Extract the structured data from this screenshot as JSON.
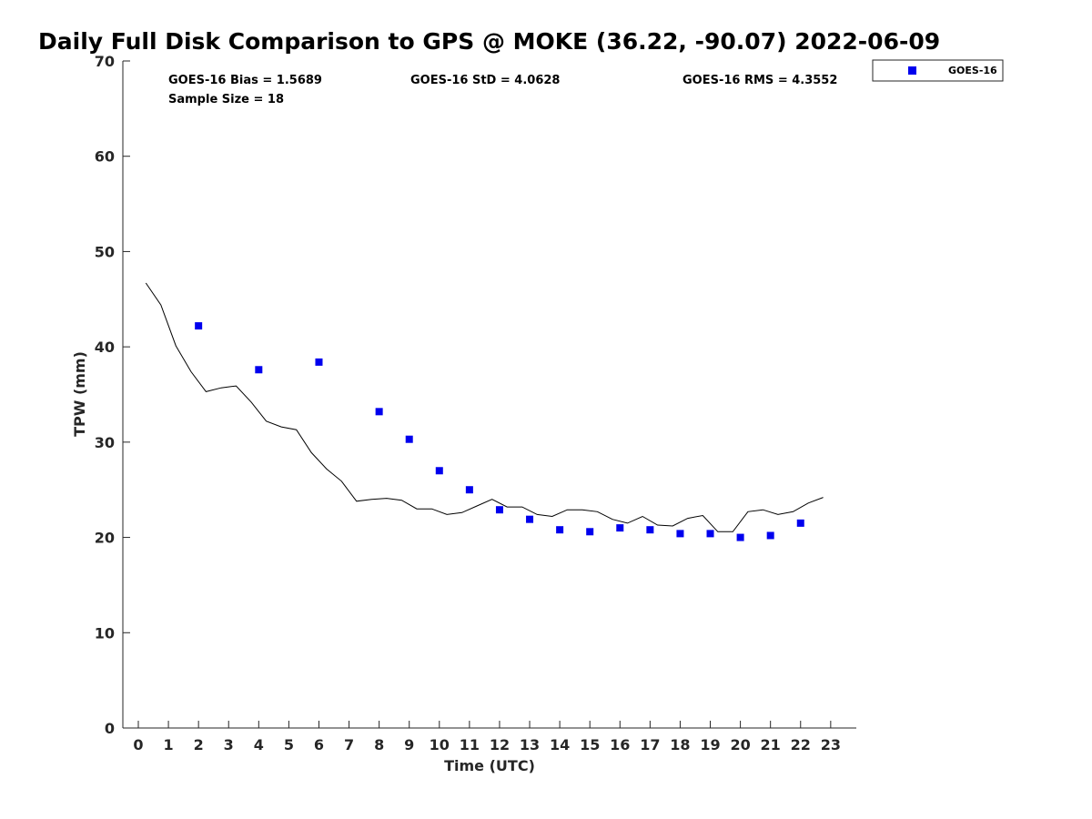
{
  "chart_data": {
    "type": "scatter",
    "title": "Daily Full Disk Comparison to GPS @ MOKE (36.22, -90.07) 2022-06-09",
    "xlabel": "Time (UTC)",
    "ylabel": "TPW (mm)",
    "xlim": [
      -0.5,
      23.8
    ],
    "ylim": [
      0,
      70
    ],
    "xticks": [
      0,
      1,
      2,
      3,
      4,
      5,
      6,
      7,
      8,
      9,
      10,
      11,
      12,
      13,
      14,
      15,
      16,
      17,
      18,
      19,
      20,
      21,
      22,
      23
    ],
    "yticks": [
      0,
      10,
      20,
      30,
      40,
      50,
      60,
      70
    ],
    "grid": false,
    "legend_position": "top-right",
    "stats": {
      "bias": "GOES-16 Bias = 1.5689",
      "std": "GOES-16 StD = 4.0628",
      "rms": "GOES-16 RMS = 4.3552",
      "sample": "Sample Size = 18"
    },
    "series": [
      {
        "name": "GOES-16",
        "kind": "scatter",
        "marker": "square",
        "color": "#0000ee",
        "x": [
          2,
          4,
          6,
          8,
          9,
          10,
          11,
          12,
          13,
          14,
          15,
          16,
          17,
          18,
          19,
          20,
          21,
          22
        ],
        "y": [
          42.2,
          37.6,
          38.4,
          33.2,
          30.3,
          27.0,
          25.0,
          22.9,
          21.9,
          20.8,
          20.6,
          21.0,
          20.8,
          20.4,
          20.4,
          20.0,
          20.2,
          21.5
        ]
      },
      {
        "kind": "line",
        "color": "#000000",
        "x": [
          0.25,
          0.75,
          1.25,
          1.75,
          2.25,
          2.75,
          3.25,
          3.75,
          4.25,
          4.75,
          5.25,
          5.75,
          6.25,
          6.75,
          7.25,
          7.75,
          8.25,
          8.75,
          9.25,
          9.75,
          10.25,
          10.75,
          11.25,
          11.75,
          12.25,
          12.75,
          13.25,
          13.75,
          14.25,
          14.75,
          15.25,
          15.75,
          16.25,
          16.75,
          17.25,
          17.75,
          18.25,
          18.75,
          19.25,
          19.75,
          20.25,
          20.75,
          21.25,
          21.75,
          22.25,
          22.75
        ],
        "y": [
          46.7,
          44.4,
          40.1,
          37.4,
          35.3,
          35.7,
          35.9,
          34.2,
          32.2,
          31.6,
          31.3,
          28.9,
          27.2,
          25.9,
          23.8,
          24.0,
          24.1,
          23.9,
          23.0,
          23.0,
          22.4,
          22.6,
          23.3,
          24.0,
          23.2,
          23.2,
          22.4,
          22.2,
          22.9,
          22.9,
          22.7,
          21.9,
          21.5,
          22.2,
          21.3,
          21.2,
          22.0,
          22.3,
          20.6,
          20.6,
          22.7,
          22.9,
          22.4,
          22.7,
          23.6,
          24.2
        ]
      }
    ]
  }
}
